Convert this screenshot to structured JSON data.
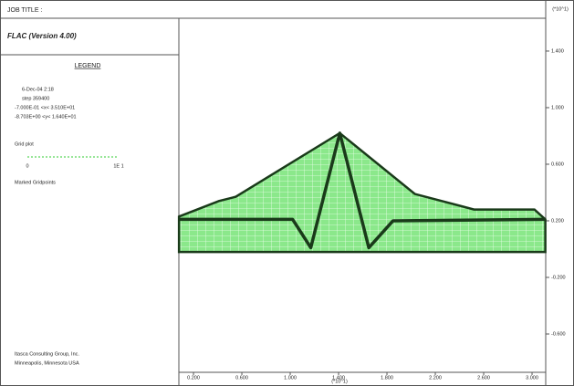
{
  "chart_data": {
    "type": "mesh",
    "job_title": "JOB TITLE :",
    "title": "FLAC (Version 4.00)",
    "legend_title": "LEGEND",
    "legend_lines": [
      "6-Dec-04  2:18",
      "step  359400",
      "-7.000E-01 <x< 3.510E+01",
      "-8.703E+00 <y< 1.640E+01"
    ],
    "scale_labels": [
      "0",
      "1E 1"
    ],
    "footer": [
      "Itasca Consulting Group, Inc.",
      "Minneapolis, Minnesota  USA"
    ],
    "xlabel": "(*10^1)",
    "ylabel": "(*10^1)",
    "xlim": [
      0.079,
      3.113
    ],
    "ylim": [
      -0.871,
      1.632
    ],
    "xticks": [
      {
        "value": 0.2,
        "label": "0.200"
      },
      {
        "value": 0.6,
        "label": "0.600"
      },
      {
        "value": 1.0,
        "label": "1.000"
      },
      {
        "value": 1.4,
        "label": "1.400"
      },
      {
        "value": 1.8,
        "label": "1.800"
      },
      {
        "value": 2.2,
        "label": "2.200"
      },
      {
        "value": 2.6,
        "label": "2.600"
      },
      {
        "value": 3.0,
        "label": "3.000"
      }
    ],
    "yticks": [
      {
        "value": 1.4,
        "label": "1.400"
      },
      {
        "value": 1.0,
        "label": "1.000"
      },
      {
        "value": 0.6,
        "label": "0.600"
      },
      {
        "value": 0.2,
        "label": "0.200"
      },
      {
        "value": -0.2,
        "label": "-0.200"
      },
      {
        "value": -0.6,
        "label": "-0.600"
      }
    ],
    "series": [
      {
        "name": "Grid plot",
        "color": "#33cc33",
        "x": [
          0.08,
          0.41,
          0.55,
          1.41,
          2.03,
          2.52,
          3.02,
          3.11,
          3.11,
          0.08
        ],
        "values": [
          0.23,
          0.34,
          0.37,
          0.82,
          0.39,
          0.28,
          0.28,
          0.21,
          -0.02,
          -0.02
        ]
      },
      {
        "name": "Marked Gridpoints",
        "color": "#1a3a1a",
        "x": [
          0.08,
          1.02,
          1.17,
          1.41,
          1.65,
          1.85,
          3.11
        ],
        "values": [
          0.21,
          0.21,
          0.01,
          0.82,
          0.01,
          0.2,
          0.21
        ]
      }
    ]
  }
}
